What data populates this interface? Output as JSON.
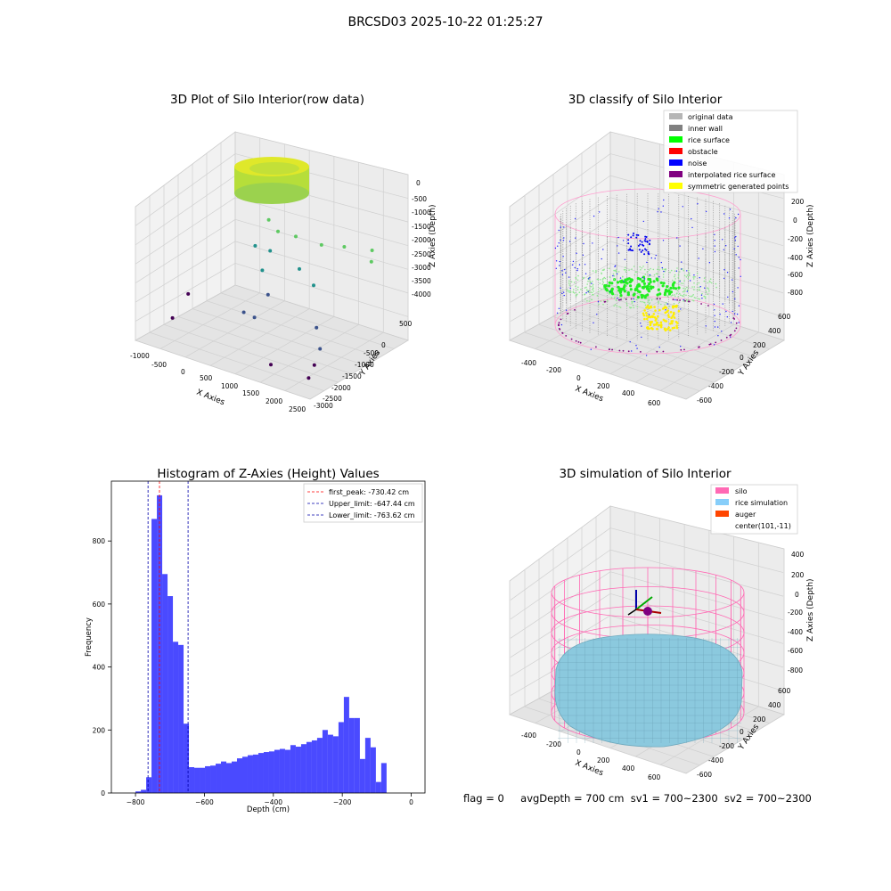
{
  "suptitle": "BRCSD03 2025-10-22 01:25:27",
  "status": {
    "flag": "flag = 0",
    "avg_depth": "avgDepth = 700 cm",
    "sv1": "sv1 = 700~2300",
    "sv2": "sv2 = 700~2300"
  },
  "colors": {
    "pane": "#f2f2f2",
    "pane_side": "#e9e9e9",
    "grid": "#cccccc",
    "hist_bar": "#4a4aff",
    "peak_line": "#ff0000",
    "limit_line": "#0000aa",
    "silo": "#ff69b4",
    "rice": "#87cefa",
    "auger": "#ff4500"
  },
  "chart_data": [
    {
      "type": "scatter3d",
      "title": "3D Plot of Silo Interior(row data)",
      "xlabel": "X Axies",
      "ylabel": "Y Axies",
      "zlabel": "Z Axies (Depth)",
      "xticks": [
        "-1000",
        "-500",
        "0",
        "500",
        "1000",
        "1500",
        "2000",
        "2500"
      ],
      "yticks": [
        "500",
        "0",
        "-500",
        "-1000",
        "-1500",
        "-2000",
        "-2500",
        "-3000"
      ],
      "zticks": [
        "0",
        "-500",
        "-1000",
        "-1500",
        "-2000",
        "-2500",
        "-3000",
        "-3500",
        "-4000"
      ],
      "xlim": [
        -1000,
        2500
      ],
      "ylim": [
        -3000,
        500
      ],
      "zlim": [
        -4200,
        100
      ],
      "colormap": "viridis (by depth)",
      "cluster": {
        "description": "dense ring of points near silo top",
        "center": [
          500,
          0
        ],
        "depth": [
          -700,
          -300
        ]
      },
      "outliers": [
        {
          "x": 300,
          "y": -600,
          "z": -1000
        },
        {
          "x": 600,
          "y": -800,
          "z": -1100
        },
        {
          "x": 900,
          "y": -700,
          "z": -1150
        },
        {
          "x": 1300,
          "y": -500,
          "z": -1300
        },
        {
          "x": 1700,
          "y": -400,
          "z": -1200
        },
        {
          "x": 2200,
          "y": -300,
          "z": -1100
        },
        {
          "x": 2300,
          "y": -500,
          "z": -1300
        },
        {
          "x": 200,
          "y": -900,
          "z": -1700
        },
        {
          "x": 500,
          "y": -900,
          "z": -1700
        },
        {
          "x": 1200,
          "y": -1100,
          "z": -1800
        },
        {
          "x": 1600,
          "y": -1300,
          "z": -2000
        },
        {
          "x": 400,
          "y": -1000,
          "z": -2300
        },
        {
          "x": 800,
          "y": -1500,
          "z": -2600
        },
        {
          "x": 2000,
          "y": -1900,
          "z": -2800
        },
        {
          "x": 600,
          "y": -2000,
          "z": -3000
        },
        {
          "x": 2300,
          "y": -2300,
          "z": -3100
        },
        {
          "x": 700,
          "y": -1800,
          "z": -3200
        },
        {
          "x": 2300,
          "y": -2500,
          "z": -3500
        },
        {
          "x": -800,
          "y": -1500,
          "z": -3400
        },
        {
          "x": -600,
          "y": -2400,
          "z": -3600
        },
        {
          "x": 1600,
          "y": -2800,
          "z": -3700
        },
        {
          "x": 2300,
          "y": -2700,
          "z": -3800
        }
      ]
    },
    {
      "type": "scatter3d",
      "title": "3D classify of Silo Interior",
      "xlabel": "X Axies",
      "ylabel": "Y Axies",
      "zlabel": "Z Axies (Depth)",
      "xticks": [
        "-400",
        "-200",
        "0",
        "200",
        "400",
        "600"
      ],
      "yticks": [
        "600",
        "400",
        "200",
        "0",
        "-200",
        "-400",
        "-600"
      ],
      "zticks": [
        "200",
        "0",
        "-200",
        "-400",
        "-600",
        "-800"
      ],
      "xlim": [
        -500,
        700
      ],
      "ylim": [
        -650,
        650
      ],
      "zlim": [
        -900,
        300
      ],
      "legend_position": "upper-right",
      "legend": [
        {
          "label": "original data",
          "color": "#b5b5b5"
        },
        {
          "label": "inner wall",
          "color": "#808080"
        },
        {
          "label": "rice surface",
          "color": "#00ff00"
        },
        {
          "label": "obstacle",
          "color": "#ff0000"
        },
        {
          "label": "noise",
          "color": "#0000ff"
        },
        {
          "label": "interpolated rice surface",
          "color": "#800080"
        },
        {
          "label": "symmetric generated points",
          "color": "#ffff00"
        }
      ]
    },
    {
      "type": "bar",
      "title": "Histogram of Z-Axies (Height) Values",
      "xlabel": "Depth (cm)",
      "ylabel": "Frequency",
      "xlim": [
        -870,
        40
      ],
      "ylim": [
        0,
        990
      ],
      "xticks": [
        -800,
        -600,
        -400,
        -200,
        0
      ],
      "yticks": [
        0,
        200,
        400,
        600,
        800
      ],
      "legend_position": "upper-right",
      "bin_width": 15.5,
      "bins_start": -800,
      "values": [
        5,
        10,
        50,
        870,
        945,
        695,
        625,
        480,
        470,
        220,
        82,
        80,
        80,
        85,
        87,
        93,
        100,
        95,
        100,
        110,
        115,
        120,
        122,
        127,
        130,
        132,
        137,
        140,
        137,
        152,
        147,
        155,
        162,
        167,
        175,
        200,
        185,
        180,
        225,
        305,
        238,
        238,
        108,
        175,
        145,
        35,
        95
      ],
      "lines": [
        {
          "label": "first_peak: -730.42 cm",
          "x": -730.42,
          "color": "#ff0000"
        },
        {
          "label": "Upper_limit: -647.44 cm",
          "x": -647.44,
          "color": "#0000aa"
        },
        {
          "label": "Lower_limit: -763.62 cm",
          "x": -763.62,
          "color": "#0000aa"
        }
      ]
    },
    {
      "type": "surface3d",
      "title": "3D simulation of Silo Interior",
      "xlabel": "X Axies",
      "ylabel": "Y Axies",
      "zlabel": "Z Axies (Depth)",
      "xticks": [
        "-400",
        "-200",
        "0",
        "200",
        "400",
        "600"
      ],
      "yticks": [
        "600",
        "400",
        "200",
        "0",
        "-200",
        "-400",
        "-600"
      ],
      "zticks": [
        "400",
        "200",
        "0",
        "-200",
        "-400",
        "-600",
        "-800"
      ],
      "legend_position": "upper-right",
      "legend": [
        {
          "label": "silo",
          "color": "#ff69b4"
        },
        {
          "label": "rice simulation",
          "color": "#87cefa"
        },
        {
          "label": "auger",
          "color": "#ff4500"
        },
        {
          "label": "center(101,-11)",
          "color": ""
        }
      ]
    }
  ]
}
